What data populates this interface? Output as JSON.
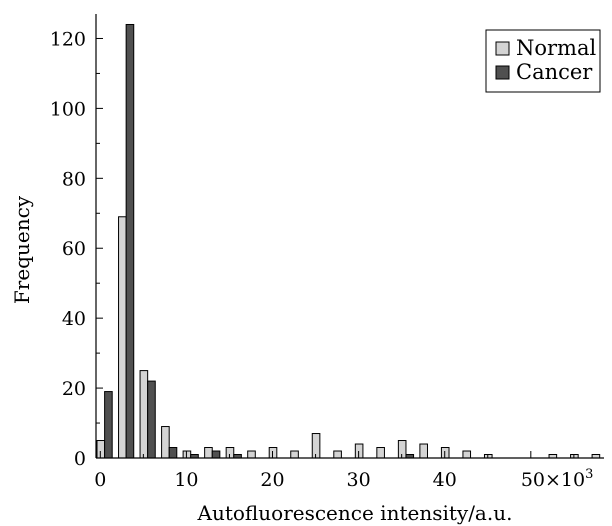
{
  "chart_data": {
    "type": "bar",
    "xlabel": "Autofluorescence intensity/a.u.",
    "ylabel": "Frequency",
    "x_unit_suffix": "×10",
    "x_unit_exponent": "3",
    "xlim": [
      -0.5,
      58.5
    ],
    "ylim": [
      0,
      127
    ],
    "x_ticks": [
      0,
      10,
      20,
      30,
      40,
      50
    ],
    "y_ticks": [
      0,
      20,
      40,
      60,
      80,
      100,
      120
    ],
    "bin_width": 2.5,
    "grid": false,
    "legend_position": "top-right",
    "series": [
      {
        "name": "Normal",
        "color": "#d4d4d4",
        "bins": [
          [
            0.5,
            5
          ],
          [
            3,
            69
          ],
          [
            5.5,
            25
          ],
          [
            8,
            9
          ],
          [
            10.5,
            2
          ],
          [
            13,
            3
          ],
          [
            15.5,
            3
          ],
          [
            18,
            2
          ],
          [
            20.5,
            3
          ],
          [
            23,
            2
          ],
          [
            25.5,
            7
          ],
          [
            28,
            2
          ],
          [
            30.5,
            4
          ],
          [
            33,
            3
          ],
          [
            35.5,
            5
          ],
          [
            38,
            4
          ],
          [
            40.5,
            3
          ],
          [
            43,
            2
          ],
          [
            45.5,
            1
          ],
          [
            53,
            1
          ],
          [
            55.5,
            1
          ],
          [
            58,
            1
          ]
        ]
      },
      {
        "name": "Cancer",
        "color": "#505050",
        "bins": [
          [
            0.5,
            19
          ],
          [
            3,
            124
          ],
          [
            5.5,
            22
          ],
          [
            8,
            3
          ],
          [
            10.5,
            1
          ],
          [
            13,
            2
          ],
          [
            15.5,
            1
          ],
          [
            35.5,
            1
          ]
        ]
      }
    ]
  }
}
